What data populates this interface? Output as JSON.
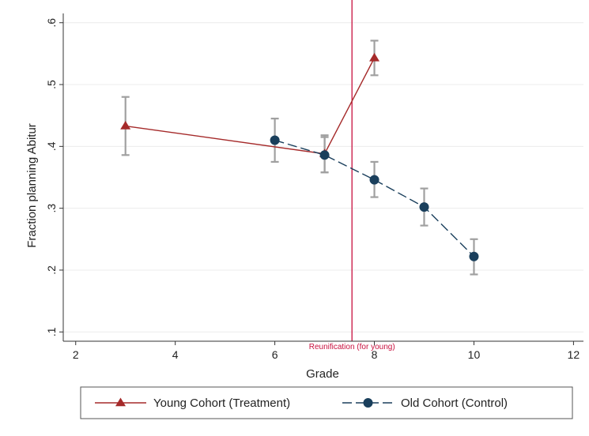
{
  "chart_data": {
    "type": "line",
    "xlabel": "Grade",
    "ylabel": "Fraction planning Abitur",
    "xlim": [
      1.75,
      12.2
    ],
    "ylim": [
      0.085,
      0.615
    ],
    "xticks": [
      2,
      4,
      6,
      8,
      10,
      12
    ],
    "yticks": [
      0.1,
      0.2,
      0.3,
      0.4,
      0.5,
      0.6
    ],
    "xtick_labels": [
      "2",
      "4",
      "6",
      "8",
      "10",
      "12"
    ],
    "ytick_labels": [
      ".1",
      ".2",
      ".3",
      ".4",
      ".5",
      ".6"
    ],
    "grid": true,
    "legend_position": "bottom",
    "series": [
      {
        "name": "Young Cohort (Treatment)",
        "color": "#a52a2a",
        "marker": "triangle",
        "line_style": "solid",
        "x": [
          3,
          7,
          8
        ],
        "y": [
          0.433,
          0.388,
          0.543
        ],
        "ci_low": [
          0.386,
          0.358,
          0.515
        ],
        "ci_high": [
          0.48,
          0.418,
          0.571
        ]
      },
      {
        "name": "Old Cohort (Control)",
        "color": "#1a3f5c",
        "marker": "circle",
        "line_style": "dashed",
        "x": [
          6,
          7,
          8,
          9,
          10
        ],
        "y": [
          0.41,
          0.386,
          0.346,
          0.302,
          0.222
        ],
        "ci_low": [
          0.375,
          0.358,
          0.318,
          0.272,
          0.193
        ],
        "ci_high": [
          0.445,
          0.415,
          0.375,
          0.332,
          0.25
        ]
      }
    ],
    "reference_line": {
      "x": 7.55,
      "color": "#c8103e",
      "label": "Reunification (for young)"
    },
    "error_bar_color": "#a0a0a0"
  }
}
